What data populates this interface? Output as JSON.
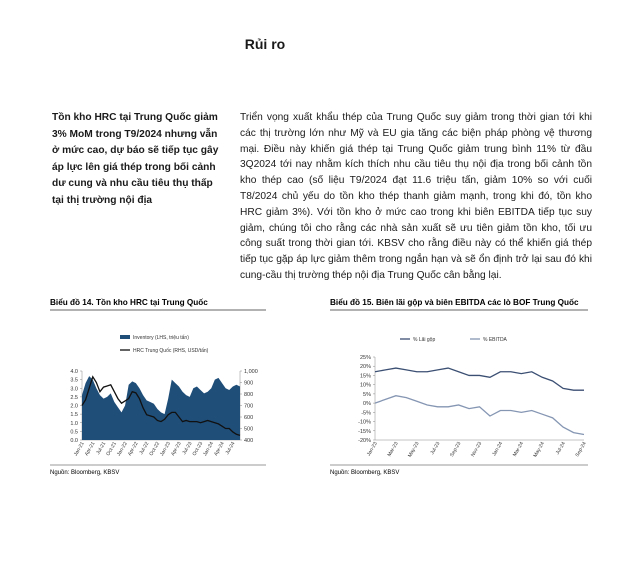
{
  "header": {
    "title": "Rủi ro"
  },
  "sidebar": {
    "text": "Tồn kho HRC tại Trung Quốc giảm 3% MoM trong T9/2024 nhưng vẫn ở mức cao, dự báo sẽ tiếp tục gây áp lực lên giá thép trong bối cảnh dư cung và nhu cầu tiêu thụ thấp tại thị trường nội địa"
  },
  "body": {
    "text": "Triển vọng xuất khẩu thép của Trung Quốc suy giảm trong thời gian tới khi các thị trường lớn như Mỹ và EU gia tăng các biện pháp phòng vệ thương mại. Điều này khiến giá thép tại Trung Quốc giảm trung bình 11% từ đầu 3Q2024 tới nay nhằm kích thích nhu cầu tiêu thụ nội địa trong bối cảnh tồn kho thép cao (số liệu T9/2024 đạt 11.6 triệu tấn, giảm 10% so với cuối T8/2024 chủ yếu do tồn kho thép thanh giảm mạnh, trong khi đó, tồn kho HRC giảm 3%). Với tồn kho ở mức cao trong khi biên EBITDA tiếp tục suy giảm, chúng tôi cho rằng các nhà sản xuất sẽ ưu tiên giảm tồn kho, tối ưu công suất trong thời gian tới. KBSV cho rằng điều này có thể khiến giá thép tiếp tục gặp áp lực giảm thêm trong ngắn hạn và sẽ ổn định trở lại sau đó khi cung-cầu thị trường thép nội địa Trung Quốc cân bằng lại."
  },
  "chart_data": [
    {
      "type": "combo",
      "title": "Biểu đồ 14. Tồn kho HRC tại Trung Quốc",
      "source": "Nguồn: Bloomberg, KBSV",
      "categories": [
        "Jan-21",
        null,
        null,
        "Apr-21",
        null,
        null,
        "Jul-21",
        null,
        null,
        "Oct-21",
        null,
        null,
        "Jan-22",
        null,
        null,
        "Apr-22",
        null,
        null,
        "Jul-22",
        null,
        null,
        "Oct-22",
        null,
        null,
        "Jan-23",
        null,
        null,
        "Apr-23",
        null,
        null,
        "Jul-23",
        null,
        null,
        "Oct-23",
        null,
        null,
        "Jan-24",
        null,
        null,
        "Apr-24",
        null,
        null,
        "Jul-24",
        null,
        null
      ],
      "series": [
        {
          "name": "Inventory (LHS, triệu tấn)",
          "type": "area",
          "color": "#1f4e79",
          "values": [
            2.6,
            3.3,
            3.7,
            3.5,
            3.0,
            2.6,
            2.4,
            2.5,
            2.7,
            2.2,
            1.9,
            1.6,
            2.0,
            3.2,
            3.4,
            3.3,
            3.0,
            2.6,
            2.3,
            2.2,
            2.1,
            1.8,
            1.6,
            1.5,
            2.4,
            3.5,
            3.3,
            3.1,
            2.8,
            2.6,
            2.5,
            3.0,
            3.1,
            2.9,
            2.7,
            2.8,
            3.0,
            3.5,
            3.6,
            3.3,
            3.0,
            2.9,
            3.1,
            3.2,
            3.1
          ]
        },
        {
          "name": "HRC Trung Quốc (RHS, USD/tấn)",
          "type": "line",
          "axis": "y2",
          "color": "#111111",
          "values": [
            700,
            750,
            850,
            950,
            900,
            820,
            860,
            870,
            880,
            820,
            760,
            720,
            740,
            760,
            820,
            810,
            760,
            680,
            620,
            610,
            600,
            570,
            560,
            580,
            620,
            640,
            640,
            600,
            560,
            570,
            560,
            560,
            560,
            550,
            560,
            570,
            560,
            550,
            540,
            520,
            500,
            500,
            470,
            450,
            440
          ]
        }
      ],
      "ylim": [
        0,
        4
      ],
      "yticks": [
        {
          "value": 0,
          "label": "0.0"
        },
        {
          "value": 0.5,
          "label": "0.5"
        },
        {
          "value": 1,
          "label": "1.0"
        },
        {
          "value": 1.5,
          "label": "1.5"
        },
        {
          "value": 2,
          "label": "2.0"
        },
        {
          "value": 2.5,
          "label": "2.5"
        },
        {
          "value": 3,
          "label": "3.0"
        },
        {
          "value": 3.5,
          "label": "3.5"
        },
        {
          "value": 4,
          "label": "4.0"
        }
      ],
      "y2lim": [
        400,
        1000
      ],
      "y2ticks": [
        400,
        500,
        600,
        700,
        800,
        900,
        {
          "value": 1000,
          "label": "1,000"
        }
      ]
    },
    {
      "type": "line",
      "title": "Biểu đồ 15. Biên lãi gộp và biên EBITDA các lò BOF Trung Quốc",
      "source": "Nguồn: Bloomberg, KBSV",
      "categories": [
        "Jan-23",
        null,
        "Mar-23",
        null,
        "May-23",
        null,
        "Jul-23",
        null,
        "Sep-23",
        null,
        "Nov-23",
        null,
        "Jan-24",
        null,
        "Mar-24",
        null,
        "May-24",
        null,
        "Jul-24",
        null,
        "Sep-24"
      ],
      "series": [
        {
          "name": "% Lãi gộp",
          "color": "#3b4f73",
          "values": [
            17,
            18,
            19,
            18,
            17,
            17,
            18,
            19,
            17,
            15,
            15,
            14,
            17,
            17,
            16,
            17,
            14,
            12,
            8,
            7,
            7
          ]
        },
        {
          "name": "% EBITDA",
          "color": "#8596b3",
          "values": [
            0,
            2,
            4,
            3,
            1,
            -1,
            -2,
            -2,
            -1,
            -3,
            -2,
            -7,
            -4,
            -4,
            -5,
            -4,
            -6,
            -8,
            -13,
            -16,
            -17
          ]
        }
      ],
      "ylim": [
        -20,
        25
      ],
      "yticks": [
        {
          "value": -20,
          "label": "-20%"
        },
        {
          "value": -15,
          "label": "-15%"
        },
        {
          "value": -10,
          "label": "-10%"
        },
        {
          "value": -5,
          "label": "-5%"
        },
        {
          "value": 0,
          "label": "0%"
        },
        {
          "value": 5,
          "label": "5%"
        },
        {
          "value": 10,
          "label": "10%"
        },
        {
          "value": 15,
          "label": "15%"
        },
        {
          "value": 20,
          "label": "20%"
        },
        {
          "value": 25,
          "label": "25%"
        }
      ]
    }
  ]
}
